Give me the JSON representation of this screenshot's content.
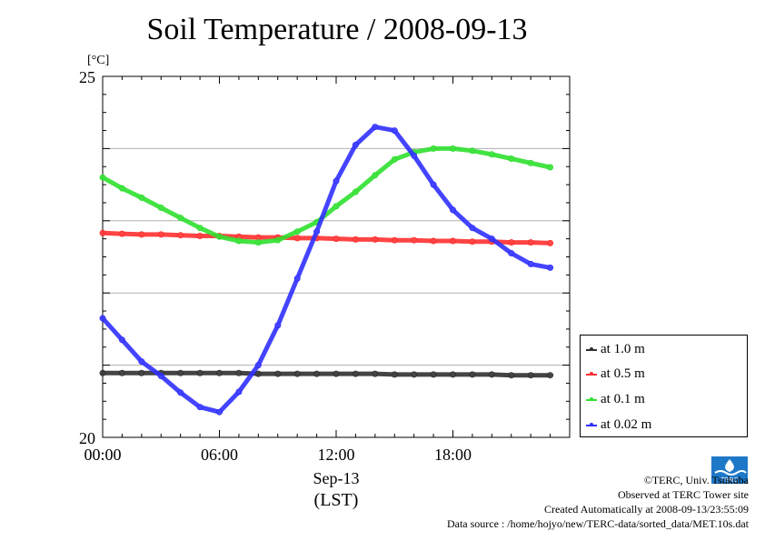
{
  "chart_data": {
    "type": "line",
    "title": "Soil Temperature / 2008-09-13",
    "ylabel": "[°C]",
    "ylim": [
      20,
      25
    ],
    "xlim": [
      "2008-09-13 00:00",
      "2008-09-14 00:00"
    ],
    "x_ticks": [
      "00:00",
      "06:00",
      "12:00",
      "18:00"
    ],
    "y_ticks": [
      "25",
      "20"
    ],
    "x_date_label": "Sep-13",
    "x_unit_label": "(LST)",
    "grid": true,
    "legend_position": "right",
    "x": [
      "2008-09-13 00:00",
      "2008-09-13 01:00",
      "2008-09-13 02:00",
      "2008-09-13 03:00",
      "2008-09-13 04:00",
      "2008-09-13 05:00",
      "2008-09-13 06:00",
      "2008-09-13 07:00",
      "2008-09-13 08:00",
      "2008-09-13 09:00",
      "2008-09-13 10:00",
      "2008-09-13 11:00",
      "2008-09-13 12:00",
      "2008-09-13 13:00",
      "2008-09-13 14:00",
      "2008-09-13 15:00",
      "2008-09-13 16:00",
      "2008-09-13 17:00",
      "2008-09-13 18:00",
      "2008-09-13 19:00",
      "2008-09-13 20:00",
      "2008-09-13 21:00",
      "2008-09-13 22:00",
      "2008-09-13 23:00"
    ],
    "series": [
      {
        "name": "at 1.0 m",
        "color": "#303030",
        "values": [
          20.89,
          20.89,
          20.89,
          20.89,
          20.89,
          20.89,
          20.89,
          20.89,
          20.88,
          20.88,
          20.88,
          20.88,
          20.88,
          20.88,
          20.88,
          20.87,
          20.87,
          20.87,
          20.87,
          20.87,
          20.87,
          20.86,
          20.86,
          20.86
        ]
      },
      {
        "name": "at 0.5 m",
        "color": "#ff3030",
        "values": [
          22.83,
          22.82,
          22.81,
          22.81,
          22.8,
          22.79,
          22.79,
          22.78,
          22.77,
          22.77,
          22.76,
          22.76,
          22.75,
          22.74,
          22.74,
          22.73,
          22.73,
          22.72,
          22.72,
          22.71,
          22.71,
          22.7,
          22.7,
          22.69
        ]
      },
      {
        "name": "at 0.1 m",
        "color": "#30e030",
        "values": [
          23.6,
          23.45,
          23.32,
          23.18,
          23.04,
          22.9,
          22.78,
          22.72,
          22.7,
          22.73,
          22.85,
          22.98,
          23.2,
          23.4,
          23.63,
          23.85,
          23.95,
          24.0,
          24.0,
          23.97,
          23.92,
          23.86,
          23.8,
          23.74
        ]
      },
      {
        "name": "at 0.02 m",
        "color": "#3030ff",
        "values": [
          21.65,
          21.35,
          21.05,
          20.85,
          20.62,
          20.42,
          20.35,
          20.63,
          21.0,
          21.55,
          22.2,
          22.85,
          23.55,
          24.05,
          24.3,
          24.25,
          23.9,
          23.5,
          23.15,
          22.9,
          22.75,
          22.55,
          22.4,
          22.35
        ]
      }
    ]
  },
  "legend": {
    "items": [
      "at 1.0 m",
      "at 0.5 m",
      "at 0.1 m",
      "at 0.02 m"
    ],
    "colors": [
      "#303030",
      "#ff3030",
      "#30e030",
      "#3030ff"
    ]
  },
  "credits": {
    "line1": "©TERC, Univ. Tsukuba",
    "line2": "Observed at TERC Tower site",
    "line3": "Created Automatically at 2008-09-13/23:55:09",
    "line4": "Data source : /home/hojyo/new/TERC-data/sorted_data/MET.10s.dat"
  },
  "logo": {
    "text": "TERC",
    "color": "#1e78c8"
  }
}
